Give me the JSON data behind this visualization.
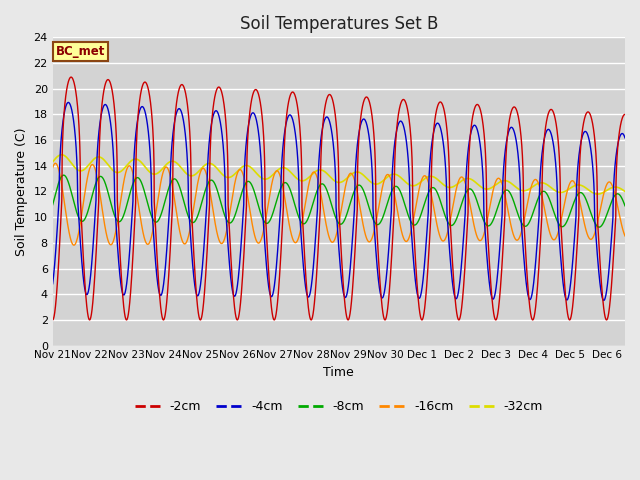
{
  "title": "Soil Temperatures Set B",
  "xlabel": "Time",
  "ylabel": "Soil Temperature (C)",
  "ylim": [
    0,
    24
  ],
  "fig_facecolor": "#e8e8e8",
  "plot_facecolor": "#d3d3d3",
  "label_box_text": "BC_met",
  "label_box_facecolor": "#ffff99",
  "label_box_edgecolor": "#8B4513",
  "series_order": [
    "-32cm",
    "-16cm",
    "-8cm",
    "-4cm",
    "-2cm"
  ],
  "legend_order": [
    "-2cm",
    "-4cm",
    "-8cm",
    "-16cm",
    "-32cm"
  ],
  "lines": {
    "-2cm": {
      "color": "#cc0000",
      "lw": 1.0
    },
    "-4cm": {
      "color": "#0000cc",
      "lw": 1.0
    },
    "-8cm": {
      "color": "#00aa00",
      "lw": 1.0
    },
    "-16cm": {
      "color": "#ff8800",
      "lw": 1.0
    },
    "-32cm": {
      "color": "#dddd00",
      "lw": 1.2
    }
  },
  "n_days": 15.5,
  "ppd": 288,
  "series": {
    "-2cm": {
      "mean_s": 11.5,
      "mean_e": 10.0,
      "amp_s": 9.5,
      "amp_e": 8.0,
      "phase": -1.5708,
      "peak_power": 0.35
    },
    "-4cm": {
      "mean_s": 11.5,
      "mean_e": 10.0,
      "amp_s": 7.5,
      "amp_e": 6.5,
      "phase": -1.1,
      "peak_power": 0.45
    },
    "-8cm": {
      "mean_s": 11.5,
      "mean_e": 10.5,
      "amp_s": 1.8,
      "amp_e": 1.3,
      "phase": -0.3,
      "peak_power": 1.0
    },
    "-16cm": {
      "mean_s": 11.0,
      "mean_e": 10.5,
      "amp_s": 3.2,
      "amp_e": 2.2,
      "phase": 1.1,
      "peak_power": 1.0
    },
    "-32cm": {
      "mean_s": 14.3,
      "mean_e": 12.0,
      "amp_s": 0.6,
      "amp_e": 0.3,
      "phase": 0.0,
      "peak_power": 1.0
    }
  },
  "tick_days": [
    0,
    1,
    2,
    3,
    4,
    5,
    6,
    7,
    8,
    9,
    10,
    11,
    12,
    13,
    14,
    15
  ],
  "tick_labels": [
    "Nov 21",
    "Nov 22",
    "Nov 23",
    "Nov 24",
    "Nov 25",
    "Nov 26",
    "Nov 27",
    "Nov 28",
    "Nov 29",
    "Nov 30",
    "Dec 1",
    "Dec 2",
    "Dec 3",
    "Dec 4",
    "Dec 5",
    "Dec 6"
  ]
}
